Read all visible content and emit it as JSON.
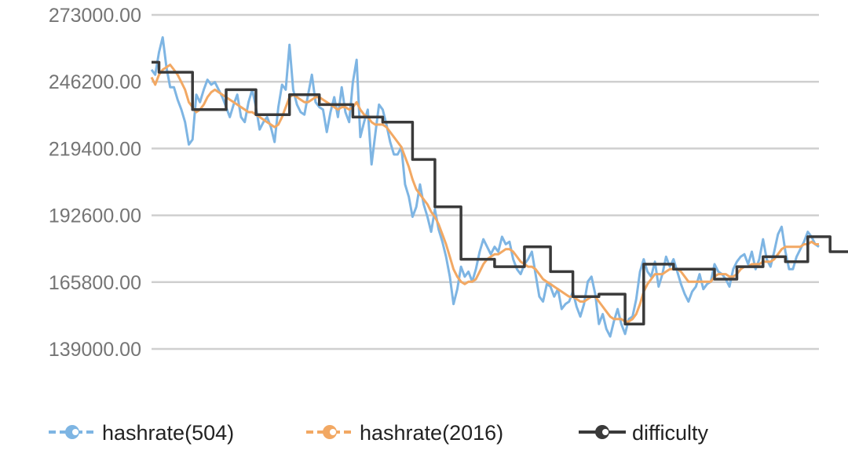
{
  "chart_data": {
    "type": "line",
    "title": "",
    "xlabel": "",
    "ylabel": "",
    "ylim": [
      139000,
      273000
    ],
    "y_ticks": [
      "139000.00",
      "165800.00",
      "192600.00",
      "219400.00",
      "246200.00",
      "273000.00"
    ],
    "y_tick_values": [
      139000,
      165800,
      192600,
      219400,
      246200,
      273000
    ],
    "x_labels_shown": false,
    "grid": "horizontal",
    "legend_position": "bottom",
    "n_points": 180,
    "series": [
      {
        "name": "hashrate(504)",
        "color": "#7eb5e3",
        "values": [
          251000,
          249000,
          258000,
          264000,
          252000,
          244000,
          244000,
          239000,
          235000,
          230000,
          221000,
          223000,
          241000,
          238000,
          243000,
          247000,
          245000,
          246000,
          243000,
          240000,
          236000,
          232000,
          237000,
          241000,
          232000,
          230000,
          238000,
          243000,
          236000,
          227000,
          230000,
          232000,
          228000,
          222000,
          236000,
          245000,
          243000,
          261000,
          243000,
          237000,
          234000,
          233000,
          241000,
          249000,
          238000,
          236000,
          235000,
          226000,
          234000,
          240000,
          232000,
          244000,
          234000,
          230000,
          246000,
          255000,
          224000,
          230000,
          235000,
          213000,
          225000,
          237000,
          235000,
          229000,
          222000,
          217000,
          217000,
          220000,
          205000,
          200000,
          192000,
          196000,
          205000,
          197000,
          192000,
          186000,
          195000,
          187000,
          182000,
          176000,
          168000,
          157000,
          163000,
          172000,
          168000,
          170000,
          166000,
          171000,
          178000,
          183000,
          180000,
          177000,
          180000,
          178000,
          184000,
          181000,
          182000,
          175000,
          171000,
          169000,
          173000,
          175000,
          178000,
          169000,
          160000,
          158000,
          165000,
          164000,
          160000,
          163000,
          155000,
          157000,
          158000,
          162000,
          156000,
          152000,
          157000,
          166000,
          168000,
          161000,
          149000,
          153000,
          147000,
          144000,
          150000,
          155000,
          149000,
          145000,
          151000,
          152000,
          159000,
          170000,
          175000,
          170000,
          168000,
          174000,
          164000,
          169000,
          176000,
          172000,
          175000,
          170000,
          165000,
          161000,
          158000,
          162000,
          164000,
          169000,
          163000,
          165000,
          166000,
          173000,
          170000,
          169000,
          167000,
          164000,
          171000,
          174000,
          176000,
          177000,
          173000,
          178000,
          171000,
          175000,
          183000,
          175000,
          172000,
          178000,
          185000,
          188000,
          178000,
          171000,
          171000,
          176000,
          179000,
          182000,
          186000,
          184000,
          181000,
          180000
        ]
      },
      {
        "name": "hashrate(2016)",
        "color": "#f2a863",
        "values": [
          248000,
          245000,
          249000,
          251000,
          252000,
          253000,
          251000,
          249000,
          246000,
          243000,
          238000,
          236000,
          234000,
          235000,
          237000,
          240000,
          242000,
          243000,
          242000,
          241000,
          240000,
          239000,
          238000,
          237000,
          236000,
          235000,
          234000,
          234000,
          233000,
          232000,
          231000,
          230000,
          229000,
          228000,
          229000,
          232000,
          236000,
          240000,
          241000,
          240000,
          239000,
          238000,
          238000,
          239000,
          240000,
          240000,
          239000,
          238000,
          237000,
          236000,
          235000,
          236000,
          236000,
          235000,
          236000,
          238000,
          235000,
          233000,
          232000,
          230000,
          229000,
          229000,
          229000,
          228000,
          226000,
          224000,
          222000,
          220000,
          216000,
          212000,
          207000,
          203000,
          201000,
          199000,
          197000,
          194000,
          192000,
          189000,
          185000,
          181000,
          176000,
          171000,
          168000,
          166000,
          165000,
          166000,
          166000,
          167000,
          170000,
          173000,
          175000,
          176000,
          177000,
          177000,
          178000,
          179000,
          179000,
          178000,
          176000,
          174000,
          173000,
          172000,
          172000,
          171000,
          169000,
          167000,
          166000,
          165000,
          164000,
          163000,
          162000,
          161000,
          160000,
          160000,
          159000,
          158000,
          158000,
          159000,
          160000,
          160000,
          158000,
          156000,
          154000,
          152000,
          151000,
          151000,
          151000,
          150000,
          150000,
          151000,
          153000,
          157000,
          162000,
          165000,
          167000,
          169000,
          169000,
          169000,
          170000,
          171000,
          171000,
          171000,
          170000,
          168000,
          166000,
          166000,
          166000,
          166000,
          166000,
          166000,
          166000,
          168000,
          169000,
          169000,
          169000,
          168000,
          168000,
          169000,
          171000,
          172000,
          172000,
          173000,
          173000,
          173000,
          174000,
          174000,
          174000,
          175000,
          177000,
          179000,
          180000,
          180000,
          180000,
          180000,
          180000,
          181000,
          181000,
          182000,
          181000,
          181000
        ]
      },
      {
        "name": "difficulty",
        "color": "#3a3a3a",
        "values": [
          254000,
          254000,
          250000,
          250000,
          250000,
          250000,
          250000,
          250000,
          250000,
          250000,
          250000,
          235000,
          235000,
          235000,
          235000,
          235000,
          235000,
          235000,
          235000,
          235000,
          243000,
          243000,
          243000,
          243000,
          243000,
          243000,
          243000,
          243000,
          233000,
          233000,
          233000,
          233000,
          233000,
          233000,
          233000,
          233000,
          233000,
          241000,
          241000,
          241000,
          241000,
          241000,
          241000,
          241000,
          241000,
          237000,
          237000,
          237000,
          237000,
          237000,
          237000,
          237000,
          237000,
          237000,
          232000,
          232000,
          232000,
          232000,
          232000,
          232000,
          232000,
          232000,
          230000,
          230000,
          230000,
          230000,
          230000,
          230000,
          230000,
          230000,
          215000,
          215000,
          215000,
          215000,
          215000,
          215000,
          196000,
          196000,
          196000,
          196000,
          196000,
          196000,
          196000,
          175000,
          175000,
          175000,
          175000,
          175000,
          175000,
          175000,
          175000,
          175000,
          172000,
          172000,
          172000,
          172000,
          172000,
          172000,
          172000,
          172000,
          180000,
          180000,
          180000,
          180000,
          180000,
          180000,
          180000,
          170000,
          170000,
          170000,
          170000,
          170000,
          170000,
          160000,
          160000,
          160000,
          160000,
          160000,
          160000,
          160000,
          161000,
          161000,
          161000,
          161000,
          161000,
          161000,
          161000,
          149000,
          149000,
          149000,
          149000,
          149000,
          173000,
          173000,
          173000,
          173000,
          173000,
          173000,
          173000,
          173000,
          171000,
          171000,
          171000,
          171000,
          171000,
          171000,
          171000,
          171000,
          171000,
          171000,
          171000,
          167000,
          167000,
          167000,
          167000,
          167000,
          167000,
          172000,
          172000,
          172000,
          172000,
          172000,
          172000,
          172000,
          176000,
          176000,
          176000,
          176000,
          176000,
          176000,
          174000,
          174000,
          174000,
          174000,
          174000,
          174000,
          184000,
          184000,
          184000,
          184000,
          184000,
          184000,
          178000,
          178000,
          178000,
          178000,
          178000,
          178000,
          178000,
          178000
        ]
      }
    ]
  }
}
